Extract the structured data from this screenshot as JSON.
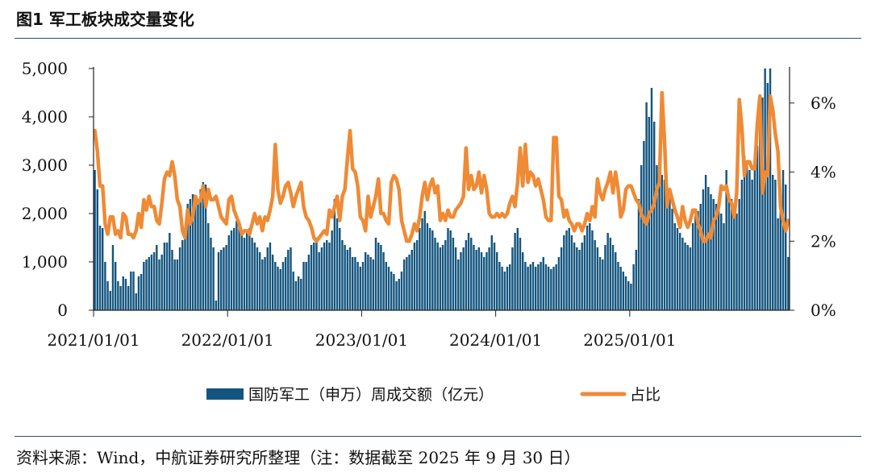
{
  "header": {
    "title": "图1  军工板块成交量变化"
  },
  "footer": {
    "source": "资料来源：Wind，中航证券研究所整理（注：数据截至 2025 年 9 月 30 日）"
  },
  "colors": {
    "bar": "#14557f",
    "line": "#ef8a35",
    "rule": "#2a4f73",
    "axis": "#222222"
  },
  "chart_data": {
    "type": "bar+line",
    "title": "军工板块成交量变化",
    "x_ticks": [
      "2021/01/01",
      "2022/01/01",
      "2023/01/01",
      "2024/01/01",
      "2025/01/01"
    ],
    "y_left": {
      "ticks": [
        "0",
        "1,000",
        "2,000",
        "3,000",
        "4,000",
        "5,000"
      ],
      "range": [
        0,
        5000
      ]
    },
    "y_right": {
      "ticks": [
        "0%",
        "2%",
        "4%",
        "6%"
      ],
      "range": [
        0,
        7
      ]
    },
    "series": [
      {
        "name": "国防军工（申万）周成交额（亿元）",
        "type": "bar",
        "axis": "left",
        "values": [
          2900,
          2500,
          1750,
          1700,
          1000,
          600,
          400,
          1350,
          1000,
          600,
          500,
          700,
          650,
          500,
          800,
          800,
          350,
          700,
          750,
          1000,
          1050,
          1100,
          1150,
          1200,
          1350,
          1050,
          1150,
          1400,
          1400,
          1600,
          1250,
          1050,
          1050,
          1300,
          1450,
          1700,
          2200,
          2300,
          2400,
          2350,
          2300,
          2500,
          2650,
          2600,
          1800,
          1500,
          1300,
          200,
          1200,
          1250,
          1300,
          1350,
          1550,
          1650,
          1700,
          1850,
          1750,
          1600,
          1500,
          1650,
          1700,
          1500,
          1400,
          1300,
          1200,
          1050,
          1100,
          1300,
          1400,
          1150,
          1000,
          900,
          850,
          1000,
          1100,
          1250,
          1300,
          800,
          600,
          700,
          650,
          1000,
          1000,
          1150,
          1350,
          1400,
          1500,
          1200,
          1300,
          1400,
          1450,
          1400,
          1650,
          2300,
          1900,
          1700,
          1450,
          1350,
          1250,
          1300,
          1100,
          1100,
          1000,
          900,
          1000,
          1200,
          1150,
          1100,
          1050,
          1500,
          1400,
          1350,
          1200,
          1000,
          900,
          800,
          750,
          600,
          650,
          800,
          1050,
          1100,
          1150,
          1250,
          1400,
          1450,
          1700,
          1900,
          2050,
          1800,
          1700,
          1650,
          1500,
          1400,
          1300,
          1350,
          1450,
          1700,
          1650,
          1500,
          1300,
          1050,
          1200,
          1300,
          1450,
          1600,
          1500,
          1350,
          1250,
          1300,
          1200,
          1100,
          1200,
          1300,
          1550,
          1400,
          1200,
          1000,
          900,
          800,
          900,
          950,
          1300,
          1600,
          1700,
          1500,
          1200,
          1000,
          900,
          950,
          1000,
          900,
          950,
          1000,
          1100,
          950,
          900,
          850,
          900,
          950,
          1100,
          1300,
          1550,
          1650,
          1700,
          1550,
          1400,
          1300,
          1250,
          1400,
          1550,
          1750,
          1800,
          1650,
          1450,
          1300,
          1100,
          1050,
          1350,
          1600,
          1500,
          1350,
          1200,
          1000,
          900,
          800,
          700,
          600,
          550,
          950,
          1250,
          2300,
          3000,
          3500,
          4300,
          4000,
          4600,
          3900,
          3000,
          2600,
          2800,
          2700,
          2500,
          2400,
          2100,
          1800,
          1700,
          1600,
          1500,
          1400,
          1350,
          1300,
          1800,
          1950,
          2050,
          2200,
          2500,
          2800,
          2550,
          2400,
          2300,
          2200,
          2100,
          2000,
          1800,
          2900,
          2400,
          2300,
          2100,
          2000,
          2300,
          2700,
          3200,
          3000,
          2900,
          2700,
          3000,
          3400,
          3800,
          4400,
          5000,
          4700,
          5000,
          2800,
          2700,
          1900,
          2200,
          2900,
          2600,
          1100
        ]
      },
      {
        "name": "占比",
        "type": "line",
        "axis": "right",
        "unit": "%",
        "values": [
          5.2,
          4.6,
          3.6,
          3.6,
          2.5,
          2.2,
          2.7,
          2.7,
          2.2,
          2.3,
          2.1,
          2.8,
          2.7,
          2.2,
          2.2,
          2.1,
          2.3,
          2.8,
          2.4,
          3.2,
          2.9,
          3.3,
          3.0,
          3.0,
          2.6,
          2.5,
          3.1,
          3.8,
          4.0,
          3.9,
          4.3,
          3.9,
          3.2,
          3.0,
          2.3,
          2.1,
          2.9,
          2.5,
          2.7,
          3.3,
          3.1,
          3.2,
          3.6,
          3.0,
          3.5,
          3.2,
          3.2,
          3.3,
          3.0,
          2.7,
          2.6,
          2.5,
          3.2,
          3.3,
          2.9,
          2.7,
          2.5,
          2.2,
          2.3,
          2.3,
          2.2,
          2.5,
          2.8,
          2.5,
          2.7,
          2.3,
          2.7,
          2.6,
          2.9,
          3.3,
          4.8,
          3.5,
          3.1,
          3.3,
          3.6,
          3.7,
          3.4,
          3.0,
          3.3,
          3.5,
          3.7,
          3.0,
          2.7,
          2.6,
          2.4,
          2.1,
          2.0,
          2.1,
          2.2,
          2.3,
          2.2,
          2.9,
          2.7,
          3.0,
          3.3,
          2.6,
          3.3,
          3.5,
          4.4,
          5.2,
          4.1,
          4.0,
          3.6,
          2.7,
          2.6,
          2.3,
          3.3,
          2.7,
          3.0,
          3.3,
          3.8,
          2.8,
          2.8,
          2.6,
          2.5,
          3.7,
          3.9,
          3.8,
          3.5,
          2.6,
          2.3,
          2.0,
          2.0,
          2.2,
          2.5,
          2.3,
          2.7,
          3.3,
          3.7,
          3.2,
          3.6,
          3.8,
          3.4,
          3.6,
          2.6,
          2.8,
          2.6,
          2.9,
          2.7,
          2.7,
          2.9,
          3.0,
          3.1,
          3.3,
          4.7,
          3.5,
          3.9,
          3.5,
          3.6,
          4.0,
          3.4,
          3.9,
          3.5,
          2.8,
          2.7,
          2.7,
          2.8,
          2.7,
          2.8,
          2.7,
          2.8,
          3.1,
          3.3,
          3.0,
          3.7,
          4.7,
          3.6,
          4.8,
          3.7,
          4.0,
          3.9,
          3.6,
          3.8,
          3.5,
          3.2,
          2.7,
          2.6,
          2.6,
          5.0,
          5.0,
          3.3,
          3.2,
          2.7,
          2.9,
          2.6,
          2.5,
          2.3,
          2.5,
          2.5,
          2.3,
          2.5,
          2.8,
          2.6,
          3.0,
          2.7,
          3.8,
          3.4,
          3.2,
          3.5,
          3.7,
          4.0,
          3.4,
          4.0,
          3.5,
          2.7,
          2.9,
          3.5,
          3.6,
          3.6,
          3.4,
          3.2,
          3.1,
          2.8,
          2.6,
          2.5,
          2.8,
          2.9,
          3.1,
          3.5,
          3.7,
          6.3,
          4.9,
          3.0,
          3.5,
          3.2,
          2.9,
          2.7,
          2.4,
          3.0,
          2.6,
          2.4,
          2.6,
          2.9,
          2.9,
          2.5,
          2.3,
          2.0,
          2.0,
          2.2,
          2.1,
          2.6,
          2.7,
          3.0,
          3.6,
          3.5,
          3.6,
          3.2,
          3.1,
          2.7,
          3.4,
          6.1,
          5.3,
          3.9,
          4.3,
          4.3,
          4.1,
          4.1,
          5.4,
          6.2,
          3.4,
          4.0,
          3.9,
          6.2,
          5.8,
          5.1,
          4.6,
          3.0,
          2.6,
          2.3,
          2.6
        ]
      }
    ]
  },
  "legend": {
    "bar_label": "国防军工（申万）周成交额（亿元）",
    "line_label": "占比"
  }
}
